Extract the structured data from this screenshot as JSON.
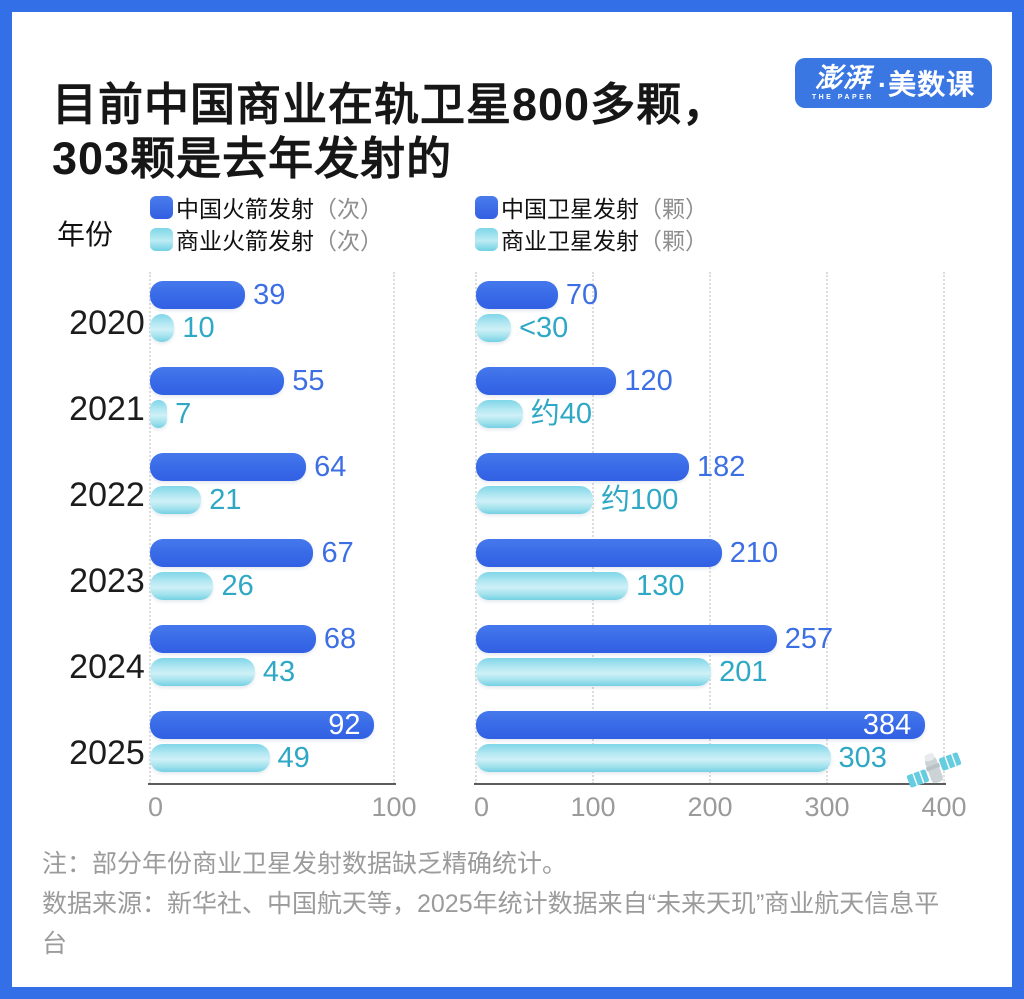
{
  "frame": {
    "border_color": "#3370E8"
  },
  "header": {
    "title": "目前中国商业在轨卫星800多颗，\n303颗是去年发射的",
    "logo": {
      "text_cn_1": "澎湃",
      "text_en": "THE PAPER",
      "text_cn_2": "·美数课",
      "bg": "#3A77E3"
    }
  },
  "legend": {
    "year_axis_title": "年份",
    "groups": [
      {
        "items": [
          {
            "label": "中国火箭发射",
            "unit": "（次）",
            "color_key": "primary"
          },
          {
            "label": "商业火箭发射",
            "unit": "（次）",
            "color_key": "secondary"
          }
        ]
      },
      {
        "items": [
          {
            "label": "中国卫星发射",
            "unit": "（颗）",
            "color_key": "primary"
          },
          {
            "label": "商业卫星发射",
            "unit": "（颗）",
            "color_key": "secondary"
          }
        ]
      }
    ]
  },
  "chart_data": [
    {
      "type": "bar",
      "orientation": "horizontal",
      "title": "中国火箭发射",
      "categories": [
        "2020",
        "2021",
        "2022",
        "2023",
        "2024",
        "2025"
      ],
      "series": [
        {
          "name": "中国火箭发射（次）",
          "color_key": "primary",
          "values": [
            39,
            55,
            64,
            67,
            68,
            92
          ],
          "labels": [
            "39",
            "55",
            "64",
            "67",
            "68",
            "92"
          ]
        },
        {
          "name": "商业火箭发射（次）",
          "color_key": "secondary",
          "values": [
            10,
            7,
            21,
            26,
            43,
            49
          ],
          "labels": [
            "10",
            "7",
            "21",
            "26",
            "43",
            "49"
          ]
        }
      ],
      "xlim": [
        0,
        100
      ],
      "ticks": [
        0,
        100
      ],
      "grid": true,
      "legend_position": "top"
    },
    {
      "type": "bar",
      "orientation": "horizontal",
      "title": "中国卫星发射",
      "categories": [
        "2020",
        "2021",
        "2022",
        "2023",
        "2024",
        "2025"
      ],
      "series": [
        {
          "name": "中国卫星发射（颗）",
          "color_key": "primary",
          "values": [
            70,
            120,
            182,
            210,
            257,
            384
          ],
          "labels": [
            "70",
            "120",
            "182",
            "210",
            "257",
            "384"
          ]
        },
        {
          "name": "商业卫星发射（颗）",
          "color_key": "secondary",
          "values": [
            30,
            40,
            100,
            130,
            201,
            303
          ],
          "labels": [
            "<30",
            "约40",
            "约100",
            "130",
            "201",
            "303"
          ]
        }
      ],
      "xlim": [
        0,
        400
      ],
      "ticks": [
        0,
        100,
        200,
        300,
        400
      ],
      "grid": true,
      "legend_position": "top"
    }
  ],
  "colors": {
    "bar_primary": "#3A6CE8",
    "bar_secondary": "#8ADAE9",
    "value_primary_text": "#3D6FE4",
    "value_secondary_text": "#2EA8C5",
    "frame_border": "#3370E8",
    "tick_text": "#9B9B9B"
  },
  "icons": {
    "satellite": "satellite-icon"
  },
  "notes": {
    "line1": "注：部分年份商业卫星发射数据缺乏精确统计。",
    "line2": "数据来源：新华社、中国航天等，2025年统计数据来自“未来天玑”商业航天信息平台"
  }
}
